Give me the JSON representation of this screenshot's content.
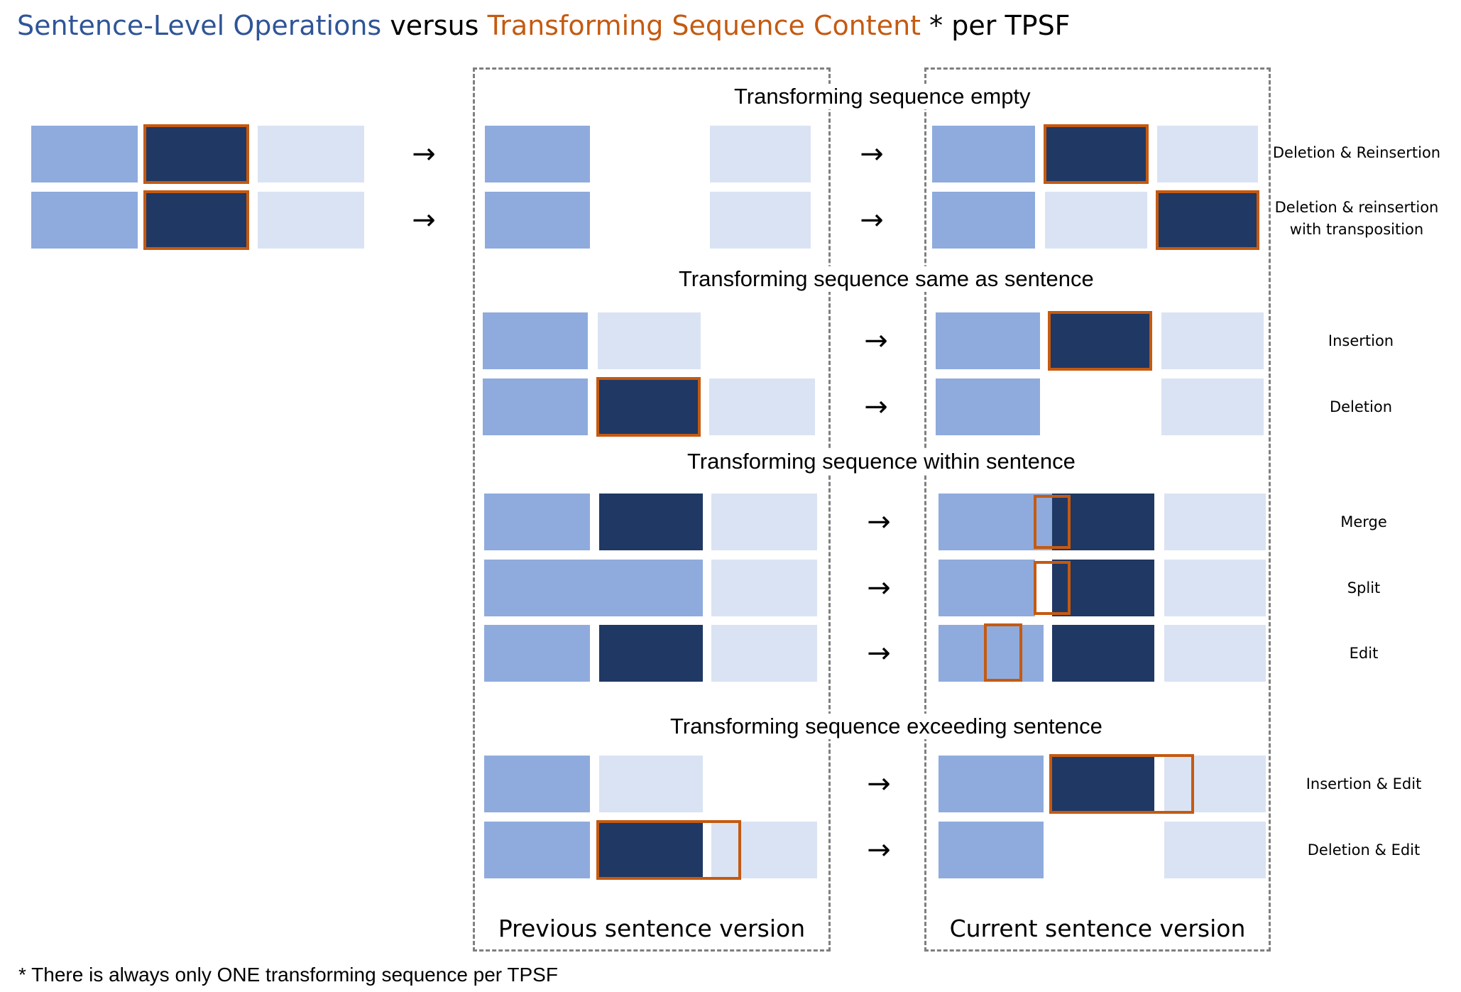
{
  "title": {
    "part1": "Sentence-Level Operations",
    "part2": " versus ",
    "part3": "Transforming Sequence Content",
    "part4": " * per TPSF",
    "color_part1": "#2f5597",
    "color_part3": "#c55a11"
  },
  "sections": {
    "empty": "Transforming sequence empty",
    "same": "Transforming sequence same as sentence",
    "within": "Transforming sequence within sentence",
    "exceeding": "Transforming sequence exceeding sentence"
  },
  "arrow_glyph": "→",
  "operations": {
    "deletion_reinsertion": "Deletion & Reinsertion",
    "deletion_reinsertion_transposition_line1": "Deletion & reinsertion",
    "deletion_reinsertion_transposition_line2": "with transposition",
    "insertion": "Insertion",
    "deletion": "Deletion",
    "merge": "Merge",
    "split": "Split",
    "edit": "Edit",
    "insertion_edit": "Insertion & Edit",
    "deletion_edit": "Deletion & Edit"
  },
  "columns": {
    "previous": "Previous sentence version",
    "current": "Current sentence version"
  },
  "footnote": "* There is always only ONE transforming sequence per TPSF",
  "colors": {
    "sentence_mid": "#8fabdd",
    "sentence_light": "#dae3f3",
    "sentence_dark": "#203864",
    "transforming_sequence_border": "#c55a11",
    "dashed_box": "#7f7f7f"
  }
}
